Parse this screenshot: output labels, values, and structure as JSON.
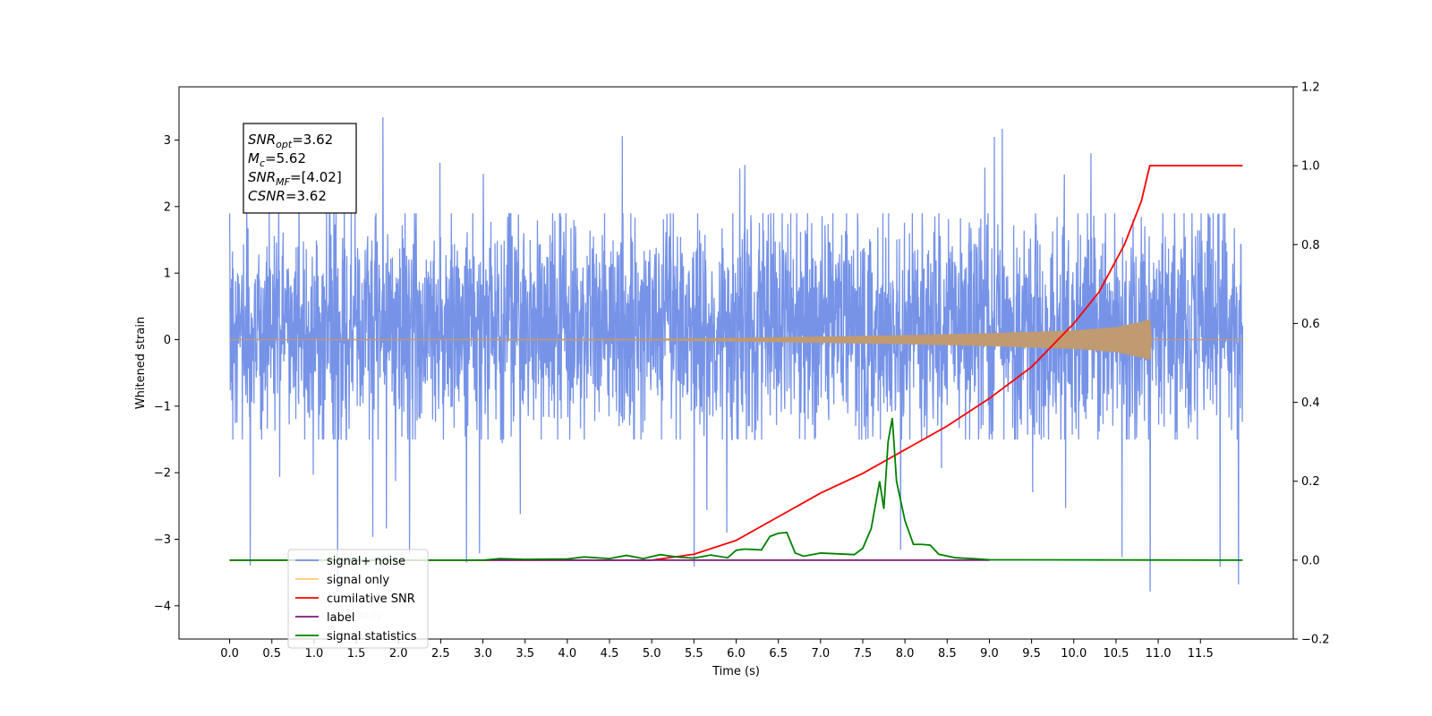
{
  "chart_data": {
    "type": "line",
    "title": "",
    "xlabel": "Time (s)",
    "ylabel_left": "Whitened strain",
    "ylabel_right": "",
    "xlim": [
      -0.6,
      12.6
    ],
    "ylim_left": [
      -4.5,
      3.8
    ],
    "ylim_right": [
      -0.2,
      1.2
    ],
    "x_ticks": [
      0.0,
      0.5,
      1.0,
      1.5,
      2.0,
      2.5,
      3.0,
      3.5,
      4.0,
      4.5,
      5.0,
      5.5,
      6.0,
      6.5,
      7.0,
      7.5,
      8.0,
      8.5,
      9.0,
      9.5,
      10.0,
      10.5,
      11.0,
      11.5
    ],
    "x_tick_labels": [
      "0.0",
      "0.5",
      "1.0",
      "1.5",
      "2.0",
      "2.5",
      "3.0",
      "3.5",
      "4.0",
      "4.5",
      "5.0",
      "5.5",
      "6.0",
      "6.5",
      "7.0",
      "7.5",
      "8.0",
      "8.5",
      "9.0",
      "9.5",
      "10.0",
      "10.5",
      "11.0",
      "11.5"
    ],
    "y_left_ticks": [
      -4,
      -3,
      -2,
      -1,
      0,
      1,
      2,
      3
    ],
    "y_left_tick_labels": [
      "−4",
      "−3",
      "−2",
      "−1",
      "0",
      "1",
      "2",
      "3"
    ],
    "y_right_ticks": [
      -0.2,
      0.0,
      0.2,
      0.4,
      0.6,
      0.8,
      1.0,
      1.2
    ],
    "y_right_tick_labels": [
      "−0.2",
      "0.0",
      "0.2",
      "0.4",
      "0.6",
      "0.8",
      "1.0",
      "1.2"
    ],
    "grid": false,
    "legend": {
      "placement": "lower-left",
      "entries": [
        "signal+ noise",
        "signal only",
        "cumilative SNR",
        "label",
        "signal statistics"
      ]
    },
    "series": [
      {
        "name": "signal+ noise",
        "axis": "left",
        "color": "#6f8de6",
        "kind": "noise",
        "x_range": [
          0.0,
          12.0
        ],
        "typical_amplitude": [
          -1.5,
          1.9
        ],
        "extreme_range": [
          -4.1,
          3.45
        ]
      },
      {
        "name": "signal only",
        "axis": "left",
        "color": "#c09a70",
        "kind": "chirp",
        "x_range": [
          0.0,
          12.0
        ],
        "envelope": {
          "x": [
            0.0,
            5.0,
            6.0,
            7.0,
            8.0,
            9.0,
            10.0,
            10.5,
            10.8,
            10.9,
            10.91,
            12.0
          ],
          "amplitude": [
            0.0,
            0.005,
            0.02,
            0.04,
            0.06,
            0.09,
            0.13,
            0.18,
            0.26,
            0.3,
            0.0,
            0.0
          ]
        }
      },
      {
        "name": "cumilative SNR",
        "axis": "right",
        "color": "#ff0000",
        "x": [
          0.0,
          5.0,
          5.5,
          6.0,
          6.5,
          7.0,
          7.5,
          8.0,
          8.5,
          9.0,
          9.5,
          10.0,
          10.3,
          10.6,
          10.8,
          10.9,
          11.0,
          12.0
        ],
        "values": [
          0.0,
          0.0,
          0.015,
          0.05,
          0.11,
          0.17,
          0.22,
          0.28,
          0.34,
          0.41,
          0.49,
          0.6,
          0.68,
          0.8,
          0.91,
          1.0,
          1.0,
          1.0
        ]
      },
      {
        "name": "label",
        "axis": "right",
        "color": "#7b1a7b",
        "x": [
          3.0,
          9.0
        ],
        "values": [
          0.0,
          0.0
        ]
      },
      {
        "name": "signal statistics",
        "axis": "right",
        "color": "#008000",
        "x": [
          0.0,
          3.0,
          3.2,
          3.5,
          4.0,
          4.2,
          4.5,
          4.7,
          4.9,
          5.1,
          5.3,
          5.5,
          5.7,
          5.9,
          6.0,
          6.1,
          6.3,
          6.4,
          6.5,
          6.6,
          6.7,
          6.8,
          7.0,
          7.2,
          7.4,
          7.5,
          7.6,
          7.7,
          7.75,
          7.8,
          7.85,
          7.9,
          8.0,
          8.1,
          8.2,
          8.3,
          8.4,
          8.6,
          8.8,
          9.0,
          12.0
        ],
        "values": [
          0.0,
          0.0,
          0.004,
          0.002,
          0.003,
          0.008,
          0.004,
          0.012,
          0.004,
          0.014,
          0.008,
          0.005,
          0.013,
          0.006,
          0.025,
          0.028,
          0.026,
          0.06,
          0.068,
          0.07,
          0.018,
          0.01,
          0.018,
          0.016,
          0.014,
          0.03,
          0.08,
          0.2,
          0.13,
          0.3,
          0.36,
          0.2,
          0.1,
          0.04,
          0.04,
          0.038,
          0.015,
          0.006,
          0.004,
          0.001,
          0.0
        ]
      }
    ],
    "annotation_box": {
      "lines": [
        {
          "name": "SNR",
          "sub": "opt",
          "value": "=3.62"
        },
        {
          "name": "M",
          "sub": "c",
          "value": "=5.62"
        },
        {
          "name": "SNR",
          "sub": "MF",
          "value": "=[4.02]"
        },
        {
          "name": "CSNR",
          "sub": "",
          "value": "=3.62"
        }
      ]
    },
    "legend_overlapped_text": "label only"
  }
}
